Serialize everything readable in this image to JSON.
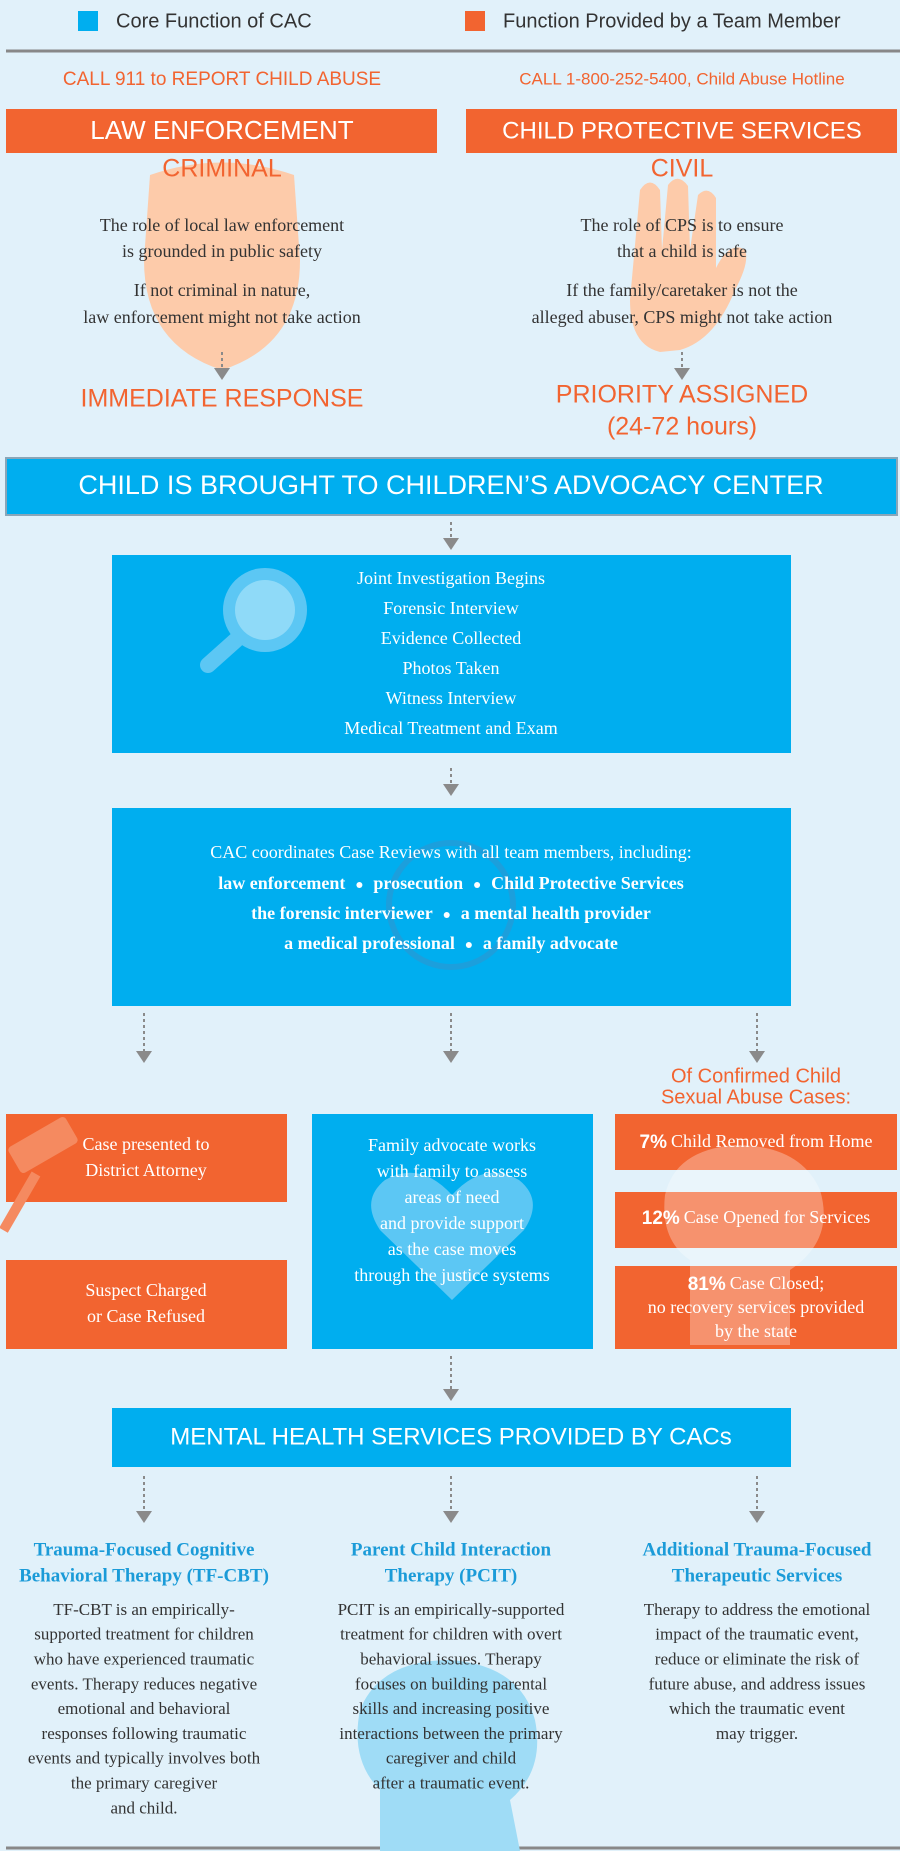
{
  "legend": [
    {
      "label": "Core Function of CAC",
      "color": "#00aeef"
    },
    {
      "label": "Function Provided by a Team Member",
      "color": "#f26430"
    }
  ],
  "reporting": [
    {
      "call": "CALL 911 to REPORT CHILD ABUSE",
      "agency": "LAW ENFORCEMENT",
      "type": "CRIMINAL",
      "role": [
        "The role of local law enforcement",
        "is grounded in public safety"
      ],
      "limit": [
        "If not criminal in nature,",
        "law enforcement might not take action"
      ],
      "response": [
        "IMMEDIATE RESPONSE"
      ]
    },
    {
      "call": "CALL 1-800-252-5400, Child Abuse Hotline",
      "agency": "CHILD PROTECTIVE SERVICES",
      "type": "CIVIL",
      "role": [
        "The role of CPS is to ensure",
        "that a child is safe"
      ],
      "limit": [
        "If the family/caretaker is not the",
        "alleged abuser, CPS might not take action"
      ],
      "response": [
        "PRIORITY ASSIGNED",
        "(24-72 hours)"
      ]
    }
  ],
  "cac_banner": "CHILD IS BROUGHT TO CHILDREN’S ADVOCACY CENTER",
  "investigation": [
    "Joint Investigation Begins",
    "Forensic Interview",
    "Evidence Collected",
    "Photos Taken",
    "Witness Interview",
    "Medical Treatment and Exam"
  ],
  "case_review": {
    "intro": "CAC coordinates Case Reviews with all team members, including:",
    "members": [
      [
        "law enforcement",
        "prosecution",
        "Child Protective Services"
      ],
      [
        "the forensic interviewer",
        "a mental health provider"
      ],
      [
        "a medical professional",
        "a family advocate"
      ]
    ]
  },
  "legal": [
    [
      "Case presented to",
      "District Attorney"
    ],
    [
      "Suspect Charged",
      "or Case Refused"
    ]
  ],
  "family_advocate": [
    "Family advocate works",
    "with family to assess",
    "areas of need",
    "and provide support",
    "as the case moves",
    "through the justice systems"
  ],
  "outcomes": {
    "title": [
      "Of Confirmed Child",
      "Sexual Abuse Cases:"
    ],
    "items": [
      {
        "percent": "7%",
        "text": [
          "Child Removed from Home"
        ]
      },
      {
        "percent": "12%",
        "text": [
          "Case Opened for Services"
        ]
      },
      {
        "percent": "81%",
        "text": [
          "Case Closed;",
          "no recovery services provided",
          "by the state"
        ]
      }
    ]
  },
  "mental_health_banner": "MENTAL HEALTH SERVICES PROVIDED BY CACs",
  "therapies": [
    {
      "title": [
        "Trauma-Focused Cognitive",
        "Behavioral Therapy (TF-CBT)"
      ],
      "body": [
        "TF-CBT is an empirically-",
        "supported treatment for children",
        "who have experienced traumatic",
        "events. Therapy reduces negative",
        "emotional and behavioral",
        "responses following traumatic",
        "events and typically involves both",
        "the primary caregiver",
        "and child."
      ]
    },
    {
      "title": [
        "Parent Child Interaction",
        "Therapy (PCIT)"
      ],
      "body": [
        "PCIT is an empirically-supported",
        "treatment for children with overt",
        "behavioral issues. Therapy",
        "focuses on building parental",
        "skills and increasing positive",
        "interactions between the primary",
        "caregiver and child",
        "after a traumatic event."
      ]
    },
    {
      "title": [
        "Additional Trauma-Focused",
        "Therapeutic Services"
      ],
      "body": [
        "Therapy to address the emotional",
        "impact of the traumatic event,",
        "reduce or eliminate the risk of",
        "future abuse, and address issues",
        "which the traumatic event",
        "may trigger."
      ]
    }
  ]
}
